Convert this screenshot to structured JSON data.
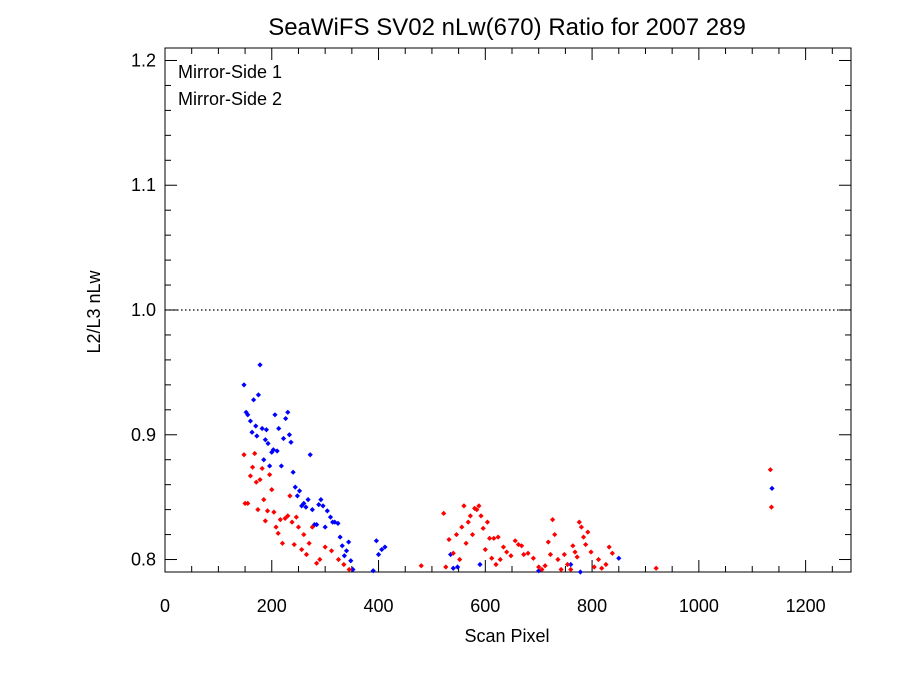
{
  "chart_data": {
    "type": "scatter",
    "title": "SeaWiFS SV02 nLw(670) Ratio for 2007 289",
    "xlabel": "Scan Pixel",
    "ylabel": "L2/L3 nLw",
    "xlim": [
      0,
      1285
    ],
    "ylim": [
      0.79,
      1.21
    ],
    "xticks": [
      0,
      200,
      400,
      600,
      800,
      1000,
      1200
    ],
    "xtick_labels": [
      "0",
      "200",
      "400",
      "600",
      "800",
      "1000",
      "1200"
    ],
    "yticks": [
      0.8,
      0.9,
      1.0,
      1.1,
      1.2
    ],
    "ytick_labels": [
      "0.8",
      "0.9",
      "1.0",
      "1.1",
      "1.2"
    ],
    "reference_line": {
      "y": 1.0,
      "style": "dotted"
    },
    "legend_position": "top-left",
    "series": [
      {
        "name": "Mirror-Side 1",
        "color": "#0000ff",
        "points": [
          [
            148,
            0.94
          ],
          [
            152,
            0.918
          ],
          [
            155,
            0.916
          ],
          [
            160,
            0.911
          ],
          [
            163,
            0.902
          ],
          [
            166,
            0.928
          ],
          [
            170,
            0.907
          ],
          [
            172,
            0.899
          ],
          [
            175,
            0.932
          ],
          [
            178,
            0.956
          ],
          [
            182,
            0.905
          ],
          [
            185,
            0.88
          ],
          [
            188,
            0.896
          ],
          [
            190,
            0.904
          ],
          [
            193,
            0.893
          ],
          [
            196,
            0.875
          ],
          [
            200,
            0.886
          ],
          [
            203,
            0.888
          ],
          [
            206,
            0.916
          ],
          [
            210,
            0.887
          ],
          [
            213,
            0.905
          ],
          [
            218,
            0.875
          ],
          [
            222,
            0.897
          ],
          [
            226,
            0.913
          ],
          [
            230,
            0.918
          ],
          [
            233,
            0.9
          ],
          [
            236,
            0.894
          ],
          [
            240,
            0.87
          ],
          [
            244,
            0.858
          ],
          [
            248,
            0.851
          ],
          [
            252,
            0.855
          ],
          [
            256,
            0.843
          ],
          [
            260,
            0.845
          ],
          [
            264,
            0.842
          ],
          [
            268,
            0.848
          ],
          [
            272,
            0.884
          ],
          [
            276,
            0.84
          ],
          [
            280,
            0.828
          ],
          [
            284,
            0.828
          ],
          [
            288,
            0.844
          ],
          [
            292,
            0.848
          ],
          [
            296,
            0.843
          ],
          [
            300,
            0.826
          ],
          [
            304,
            0.839
          ],
          [
            310,
            0.834
          ],
          [
            314,
            0.83
          ],
          [
            318,
            0.83
          ],
          [
            324,
            0.829
          ],
          [
            328,
            0.818
          ],
          [
            332,
            0.811
          ],
          [
            336,
            0.803
          ],
          [
            340,
            0.807
          ],
          [
            344,
            0.814
          ],
          [
            348,
            0.799
          ],
          [
            352,
            0.792
          ],
          [
            390,
            0.791
          ],
          [
            396,
            0.815
          ],
          [
            400,
            0.804
          ],
          [
            406,
            0.808
          ],
          [
            412,
            0.81
          ],
          [
            535,
            0.804
          ],
          [
            540,
            0.793
          ],
          [
            548,
            0.794
          ],
          [
            590,
            0.796
          ],
          [
            700,
            0.791
          ],
          [
            760,
            0.796
          ],
          [
            778,
            0.79
          ],
          [
            850,
            0.801
          ],
          [
            1137,
            0.857
          ]
        ]
      },
      {
        "name": "Mirror-Side 2",
        "color": "#ff0000",
        "points": [
          [
            148,
            0.884
          ],
          [
            150,
            0.845
          ],
          [
            155,
            0.845
          ],
          [
            160,
            0.867
          ],
          [
            164,
            0.874
          ],
          [
            168,
            0.885
          ],
          [
            171,
            0.862
          ],
          [
            174,
            0.84
          ],
          [
            178,
            0.864
          ],
          [
            182,
            0.873
          ],
          [
            185,
            0.848
          ],
          [
            188,
            0.831
          ],
          [
            192,
            0.839
          ],
          [
            196,
            0.868
          ],
          [
            200,
            0.856
          ],
          [
            204,
            0.838
          ],
          [
            208,
            0.826
          ],
          [
            212,
            0.821
          ],
          [
            216,
            0.832
          ],
          [
            220,
            0.813
          ],
          [
            225,
            0.833
          ],
          [
            230,
            0.835
          ],
          [
            234,
            0.851
          ],
          [
            238,
            0.83
          ],
          [
            242,
            0.812
          ],
          [
            246,
            0.834
          ],
          [
            250,
            0.826
          ],
          [
            256,
            0.808
          ],
          [
            260,
            0.82
          ],
          [
            265,
            0.804
          ],
          [
            270,
            0.813
          ],
          [
            276,
            0.826
          ],
          [
            284,
            0.797
          ],
          [
            290,
            0.8
          ],
          [
            300,
            0.81
          ],
          [
            312,
            0.807
          ],
          [
            325,
            0.8
          ],
          [
            335,
            0.796
          ],
          [
            345,
            0.792
          ],
          [
            480,
            0.795
          ],
          [
            522,
            0.837
          ],
          [
            526,
            0.794
          ],
          [
            532,
            0.816
          ],
          [
            540,
            0.805
          ],
          [
            546,
            0.82
          ],
          [
            552,
            0.8
          ],
          [
            556,
            0.826
          ],
          [
            560,
            0.843
          ],
          [
            564,
            0.813
          ],
          [
            568,
            0.83
          ],
          [
            572,
            0.835
          ],
          [
            576,
            0.82
          ],
          [
            580,
            0.841
          ],
          [
            584,
            0.84
          ],
          [
            588,
            0.843
          ],
          [
            592,
            0.835
          ],
          [
            596,
            0.825
          ],
          [
            600,
            0.808
          ],
          [
            604,
            0.83
          ],
          [
            608,
            0.817
          ],
          [
            612,
            0.801
          ],
          [
            616,
            0.817
          ],
          [
            620,
            0.796
          ],
          [
            624,
            0.818
          ],
          [
            628,
            0.8
          ],
          [
            634,
            0.81
          ],
          [
            640,
            0.806
          ],
          [
            648,
            0.803
          ],
          [
            656,
            0.815
          ],
          [
            662,
            0.812
          ],
          [
            668,
            0.811
          ],
          [
            672,
            0.804
          ],
          [
            680,
            0.805
          ],
          [
            690,
            0.801
          ],
          [
            700,
            0.794
          ],
          [
            706,
            0.792
          ],
          [
            712,
            0.795
          ],
          [
            718,
            0.814
          ],
          [
            722,
            0.804
          ],
          [
            726,
            0.832
          ],
          [
            730,
            0.82
          ],
          [
            736,
            0.8
          ],
          [
            742,
            0.792
          ],
          [
            748,
            0.804
          ],
          [
            754,
            0.796
          ],
          [
            760,
            0.792
          ],
          [
            764,
            0.811
          ],
          [
            768,
            0.806
          ],
          [
            772,
            0.802
          ],
          [
            776,
            0.83
          ],
          [
            780,
            0.826
          ],
          [
            784,
            0.818
          ],
          [
            788,
            0.812
          ],
          [
            792,
            0.822
          ],
          [
            798,
            0.806
          ],
          [
            804,
            0.794
          ],
          [
            812,
            0.8
          ],
          [
            818,
            0.793
          ],
          [
            826,
            0.796
          ],
          [
            832,
            0.81
          ],
          [
            838,
            0.805
          ],
          [
            920,
            0.793
          ],
          [
            1134,
            0.872
          ],
          [
            1136,
            0.842
          ]
        ]
      }
    ]
  }
}
